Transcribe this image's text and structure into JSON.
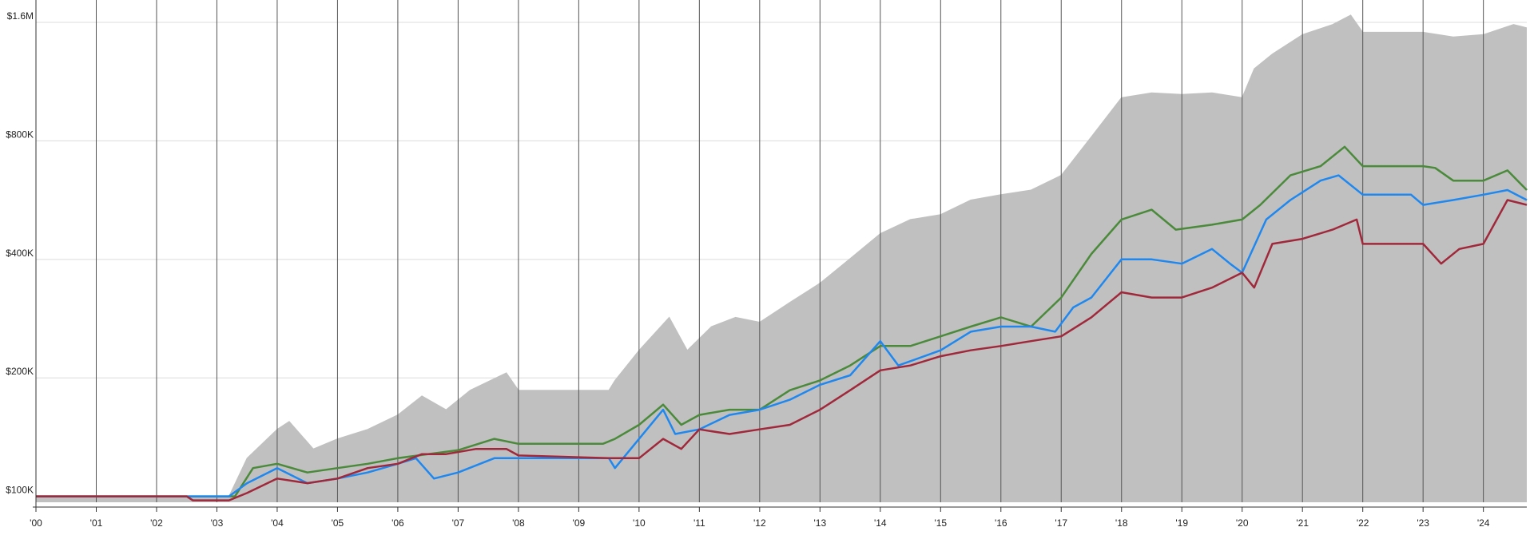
{
  "chart_data": {
    "type": "line",
    "yscale": "log",
    "grid": true,
    "xlim": [
      2000,
      2024.72
    ],
    "ylim": [
      96600,
      1824000
    ],
    "xticks": [
      {
        "value": 2000,
        "label": "'00"
      },
      {
        "value": 2001,
        "label": "'01"
      },
      {
        "value": 2002,
        "label": "'02"
      },
      {
        "value": 2003,
        "label": "'03"
      },
      {
        "value": 2004,
        "label": "'04"
      },
      {
        "value": 2005,
        "label": "'05"
      },
      {
        "value": 2006,
        "label": "'06"
      },
      {
        "value": 2007,
        "label": "'07"
      },
      {
        "value": 2008,
        "label": "'08"
      },
      {
        "value": 2009,
        "label": "'09"
      },
      {
        "value": 2010,
        "label": "'10"
      },
      {
        "value": 2011,
        "label": "'11"
      },
      {
        "value": 2012,
        "label": "'12"
      },
      {
        "value": 2013,
        "label": "'13"
      },
      {
        "value": 2014,
        "label": "'14"
      },
      {
        "value": 2015,
        "label": "'15"
      },
      {
        "value": 2016,
        "label": "'16"
      },
      {
        "value": 2017,
        "label": "'17"
      },
      {
        "value": 2018,
        "label": "'18"
      },
      {
        "value": 2019,
        "label": "'19"
      },
      {
        "value": 2020,
        "label": "'20"
      },
      {
        "value": 2021,
        "label": "'21"
      },
      {
        "value": 2022,
        "label": "'22"
      },
      {
        "value": 2023,
        "label": "'23"
      },
      {
        "value": 2024,
        "label": "'24"
      }
    ],
    "yticks": [
      {
        "value": 100000,
        "label": "$100K"
      },
      {
        "value": 200000,
        "label": "$200K"
      },
      {
        "value": 400000,
        "label": "$400K"
      },
      {
        "value": 800000,
        "label": "$800K"
      },
      {
        "value": 1600000,
        "label": "$1.6M"
      }
    ],
    "series": [
      {
        "color": "#c0c0c0",
        "fill": true,
        "x": [
          2000,
          2003.2,
          2003.5,
          2004,
          2004.2,
          2004.6,
          2005,
          2005.5,
          2006,
          2006.4,
          2006.8,
          2007.2,
          2007.8,
          2008,
          2009.5,
          2009.6,
          2010,
          2010.5,
          2010.8,
          2011.2,
          2011.6,
          2012,
          2012.5,
          2013,
          2013.5,
          2014,
          2014.5,
          2015,
          2015.5,
          2016,
          2016.5,
          2017,
          2017.5,
          2018,
          2018.5,
          2019,
          2019.5,
          2020,
          2020.2,
          2020.5,
          2021,
          2021.5,
          2021.8,
          2022,
          2023,
          2023.5,
          2024,
          2024.5,
          2024.72
        ],
        "values": [
          100000,
          100000,
          125000,
          148000,
          155000,
          132000,
          140000,
          148000,
          161000,
          180000,
          166000,
          186000,
          206000,
          186000,
          186000,
          197000,
          235000,
          285000,
          235000,
          270000,
          285000,
          277000,
          311000,
          348000,
          402000,
          465000,
          505000,
          520000,
          566000,
          584000,
          600000,
          654000,
          820000,
          1030000,
          1060000,
          1050000,
          1060000,
          1030000,
          1220000,
          1330000,
          1490000,
          1580000,
          1670000,
          1510000,
          1510000,
          1470000,
          1490000,
          1580000,
          1550000
        ]
      },
      {
        "color": "#4a8a3a",
        "x": [
          2000,
          2003.3,
          2003.6,
          2004,
          2004.5,
          2005,
          2005.5,
          2006,
          2006.5,
          2007,
          2007.6,
          2008,
          2009.4,
          2009.6,
          2010,
          2010.4,
          2010.7,
          2011,
          2011.5,
          2012,
          2012.5,
          2013,
          2013.5,
          2014,
          2014.5,
          2015,
          2015.5,
          2016,
          2016.5,
          2017,
          2017.5,
          2018,
          2018.5,
          2018.9,
          2019.5,
          2020,
          2020.3,
          2020.8,
          2021.3,
          2021.7,
          2022,
          2023,
          2023.2,
          2023.5,
          2024,
          2024.4,
          2024.72
        ],
        "values": [
          100000,
          100000,
          118000,
          121000,
          115000,
          118000,
          121000,
          125000,
          128000,
          131000,
          140000,
          136000,
          136000,
          140000,
          152000,
          171000,
          152000,
          161000,
          166000,
          166000,
          186000,
          197000,
          215000,
          241000,
          241000,
          255000,
          270000,
          285000,
          270000,
          320000,
          413000,
          505000,
          535000,
          476000,
          490000,
          505000,
          550000,
          654000,
          690000,
          773000,
          690000,
          690000,
          683000,
          634000,
          634000,
          673000,
          600000
        ]
      },
      {
        "color": "#1e88f0",
        "x": [
          2000,
          2003.2,
          2003.5,
          2004,
          2004.5,
          2005,
          2005.5,
          2006,
          2006.3,
          2006.6,
          2007,
          2007.6,
          2008,
          2009.5,
          2009.6,
          2010,
          2010.4,
          2010.6,
          2011,
          2011.5,
          2012,
          2012.5,
          2013,
          2013.5,
          2014,
          2014.3,
          2015,
          2015.5,
          2016,
          2016.5,
          2016.9,
          2017.2,
          2017.5,
          2018,
          2018.5,
          2019,
          2019.5,
          2019.8,
          2020,
          2020.4,
          2020.8,
          2021.3,
          2021.6,
          2022,
          2022.8,
          2023,
          2023.5,
          2024,
          2024.4,
          2024.72
        ],
        "values": [
          100000,
          100000,
          108000,
          118000,
          108000,
          111000,
          115000,
          121000,
          125000,
          111000,
          115000,
          125000,
          125000,
          125000,
          118000,
          140000,
          166000,
          144000,
          148000,
          161000,
          166000,
          176000,
          192000,
          203000,
          248000,
          215000,
          235000,
          262000,
          270000,
          270000,
          262000,
          302000,
          320000,
          400000,
          400000,
          390000,
          425000,
          390000,
          370000,
          505000,
          566000,
          634000,
          654000,
          584000,
          584000,
          550000,
          566000,
          584000,
          600000,
          566000
        ]
      },
      {
        "color": "#a0283a",
        "x": [
          2000,
          2002.5,
          2002.6,
          2003.2,
          2003.5,
          2004,
          2004.5,
          2005,
          2005.5,
          2006,
          2006.4,
          2006.8,
          2007.3,
          2007.8,
          2008,
          2009.5,
          2010,
          2010.4,
          2010.7,
          2011,
          2011.5,
          2012,
          2012.5,
          2013,
          2013.5,
          2014,
          2014.5,
          2015,
          2015.5,
          2016,
          2016.5,
          2017,
          2017.5,
          2018,
          2018.5,
          2019,
          2019.5,
          2020,
          2020.2,
          2020.5,
          2021,
          2021.5,
          2021.9,
          2022,
          2023,
          2023.3,
          2023.6,
          2024,
          2024.4,
          2024.72
        ],
        "values": [
          100000,
          100000,
          97700,
          97700,
          102000,
          111000,
          108000,
          111000,
          118000,
          121000,
          128000,
          128000,
          132000,
          132000,
          127000,
          125000,
          125000,
          140000,
          132000,
          148000,
          144000,
          148000,
          152000,
          166000,
          186000,
          209000,
          215000,
          227000,
          235000,
          241000,
          248000,
          255000,
          285000,
          330000,
          320000,
          320000,
          339000,
          370000,
          339000,
          438000,
          451000,
          476000,
          505000,
          438000,
          438000,
          390000,
          425000,
          438000,
          566000,
          550000
        ]
      }
    ]
  }
}
